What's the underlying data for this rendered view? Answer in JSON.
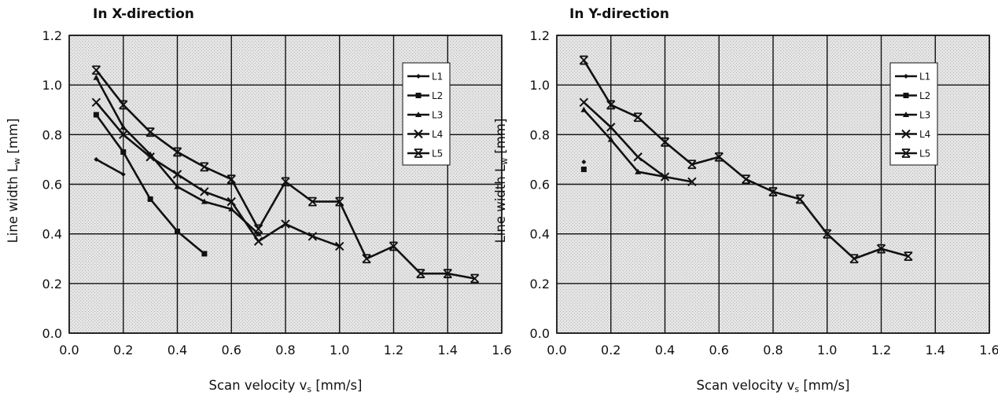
{
  "chart_data": [
    {
      "type": "line",
      "title": "In X-direction",
      "xlabel": "Scan velocity v",
      "xlabel_sub": "s",
      "xlabel_unit": " [mm/s]",
      "ylabel": "Line width L",
      "ylabel_sub": "w",
      "ylabel_unit": " [mm]",
      "xlim": [
        0.0,
        1.6
      ],
      "ylim": [
        0.0,
        1.2
      ],
      "xticks": [
        "0.0",
        "0.2",
        "0.4",
        "0.6",
        "0.8",
        "1.0",
        "1.2",
        "1.4",
        "1.6"
      ],
      "yticks": [
        "0.0",
        "0.2",
        "0.4",
        "0.6",
        "0.8",
        "1.0",
        "1.2"
      ],
      "grid": true,
      "legend_position": "top-right",
      "series": [
        {
          "name": "L1",
          "marker": "diamond",
          "x": [
            0.1,
            0.2
          ],
          "y": [
            0.7,
            0.64
          ]
        },
        {
          "name": "L2",
          "marker": "square",
          "x": [
            0.1,
            0.2,
            0.3,
            0.4,
            0.5
          ],
          "y": [
            0.88,
            0.73,
            0.54,
            0.41,
            0.32
          ]
        },
        {
          "name": "L3",
          "marker": "triangle",
          "x": [
            0.1,
            0.2,
            0.3,
            0.4,
            0.5,
            0.6,
            0.7
          ],
          "y": [
            1.03,
            0.83,
            0.72,
            0.59,
            0.53,
            0.5,
            0.4
          ]
        },
        {
          "name": "L4",
          "marker": "x",
          "x": [
            0.1,
            0.2,
            0.3,
            0.4,
            0.5,
            0.6,
            0.7,
            0.8,
            0.9,
            1.0
          ],
          "y": [
            0.93,
            0.8,
            0.71,
            0.64,
            0.57,
            0.53,
            0.37,
            0.44,
            0.39,
            0.35
          ]
        },
        {
          "name": "L5",
          "marker": "star",
          "x": [
            0.1,
            0.2,
            0.3,
            0.4,
            0.5,
            0.6,
            0.7,
            0.8,
            0.9,
            1.0,
            1.1,
            1.2,
            1.3,
            1.4,
            1.5
          ],
          "y": [
            1.06,
            0.92,
            0.81,
            0.73,
            0.67,
            0.62,
            0.42,
            0.61,
            0.53,
            0.53,
            0.3,
            0.35,
            0.24,
            0.24,
            0.22
          ]
        }
      ]
    },
    {
      "type": "line",
      "title": "In Y-direction",
      "xlabel": "Scan velocity v",
      "xlabel_sub": "s",
      "xlabel_unit": " [mm/s]",
      "ylabel": "Line width L",
      "ylabel_sub": "w",
      "ylabel_unit": " [mm]",
      "xlim": [
        0.0,
        1.6
      ],
      "ylim": [
        0.0,
        1.2
      ],
      "xticks": [
        "0.0",
        "0.2",
        "0.4",
        "0.6",
        "0.8",
        "1.0",
        "1.2",
        "1.4",
        "1.6"
      ],
      "yticks": [
        "0.0",
        "0.2",
        "0.4",
        "0.6",
        "0.8",
        "1.0",
        "1.2"
      ],
      "grid": true,
      "legend_position": "top-right",
      "series": [
        {
          "name": "L1",
          "marker": "diamond",
          "x": [
            0.1
          ],
          "y": [
            0.69
          ]
        },
        {
          "name": "L2",
          "marker": "square",
          "x": [
            0.1
          ],
          "y": [
            0.66
          ]
        },
        {
          "name": "L3",
          "marker": "triangle",
          "x": [
            0.1,
            0.2,
            0.3,
            0.4
          ],
          "y": [
            0.9,
            0.78,
            0.65,
            0.63
          ]
        },
        {
          "name": "L4",
          "marker": "x",
          "x": [
            0.1,
            0.2,
            0.3,
            0.4,
            0.5
          ],
          "y": [
            0.93,
            0.83,
            0.71,
            0.63,
            0.61
          ]
        },
        {
          "name": "L5",
          "marker": "star",
          "x": [
            0.1,
            0.2,
            0.3,
            0.4,
            0.5,
            0.6,
            0.7,
            0.8,
            0.9,
            1.0,
            1.1,
            1.2,
            1.3
          ],
          "y": [
            1.1,
            0.92,
            0.87,
            0.77,
            0.68,
            0.71,
            0.62,
            0.57,
            0.54,
            0.4,
            0.3,
            0.34,
            0.31
          ]
        }
      ]
    }
  ]
}
